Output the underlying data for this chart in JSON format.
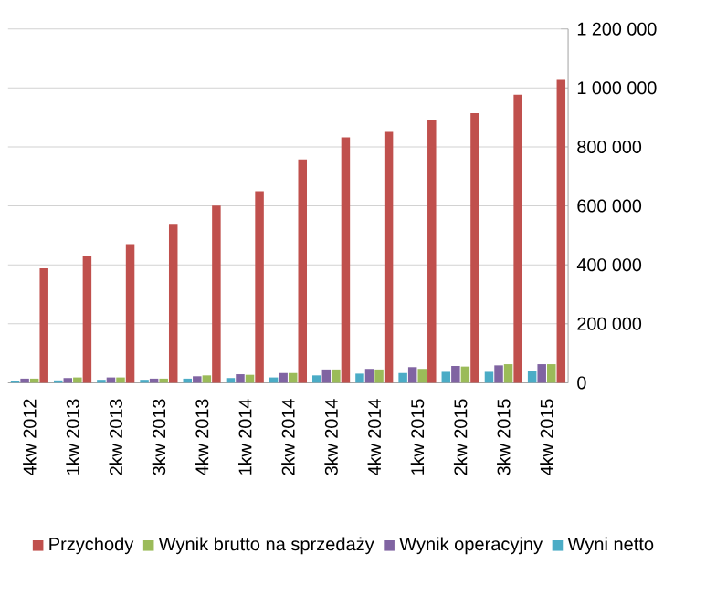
{
  "chart_data": {
    "type": "bar",
    "categories": [
      "4kw 2012",
      "1kw 2013",
      "2kw 2013",
      "3kw 2013",
      "4kw 2013",
      "1kw 2014",
      "2kw 2014",
      "3kw 2014",
      "4kw 2014",
      "1kw 2015",
      "2kw 2015",
      "3kw 2015",
      "4kw 2015"
    ],
    "series": [
      {
        "name": "Wyni netto",
        "color": "#4bacc6",
        "values": [
          6000,
          8000,
          10000,
          10000,
          14000,
          16000,
          18000,
          25000,
          31000,
          33000,
          37000,
          37000,
          41000
        ]
      },
      {
        "name": "Wynik operacyjny",
        "color": "#8064a2",
        "values": [
          14000,
          16000,
          18000,
          14000,
          22000,
          29000,
          33000,
          45000,
          47000,
          53000,
          57000,
          59000,
          63000
        ]
      },
      {
        "name": "Wynik brutto na sprzedaży",
        "color": "#9bbb59",
        "values": [
          14000,
          18000,
          18000,
          14000,
          25000,
          27000,
          33000,
          45000,
          45000,
          47000,
          55000,
          63000,
          63000
        ]
      },
      {
        "name": "Przychody",
        "color": "#c0504d",
        "values": [
          388000,
          429000,
          470000,
          536000,
          601000,
          650000,
          757000,
          832000,
          851000,
          892000,
          914000,
          977000,
          1027000
        ]
      }
    ],
    "ylim": [
      0,
      1200000
    ],
    "yticks": [
      {
        "value": 0,
        "label": "0"
      },
      {
        "value": 200000,
        "label": "200 000"
      },
      {
        "value": 400000,
        "label": "400 000"
      },
      {
        "value": 600000,
        "label": "600 000"
      },
      {
        "value": 800000,
        "label": "800 000"
      },
      {
        "value": 1000000,
        "label": "1 000 000"
      },
      {
        "value": 1200000,
        "label": "1 200 000"
      }
    ],
    "grid": "y",
    "legend": "bottom"
  }
}
